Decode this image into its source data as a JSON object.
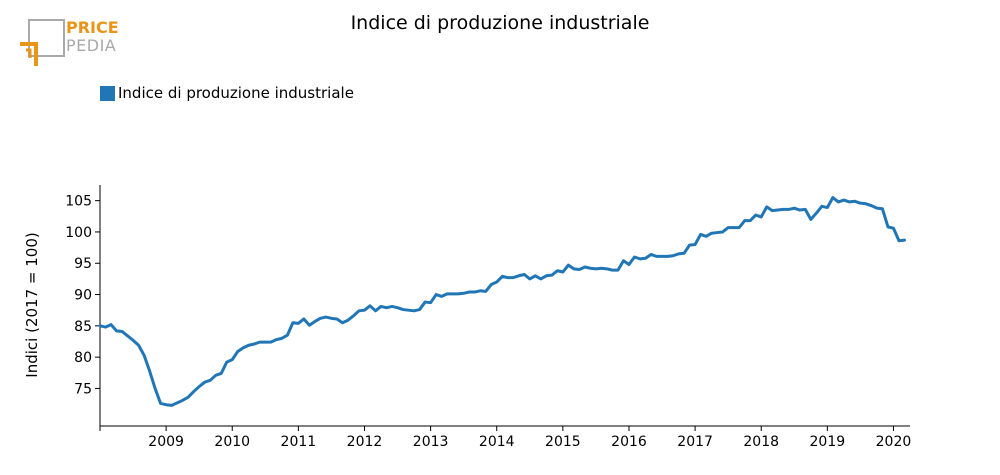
{
  "logo": {
    "top": "PRICE",
    "bottom": "PEDIA",
    "accent_color": "#e8951a",
    "gray_color": "#a9a9a9"
  },
  "colors": {
    "series": "#2176b5",
    "axis": "#000000"
  },
  "chart_data": {
    "type": "line",
    "title": "Indice di produzione industriale",
    "ylabel": "Indici (2017 = 100)",
    "xlabel": "",
    "legend_position": "top-left",
    "grid": false,
    "ylim": [
      69,
      107.5
    ],
    "yticks": [
      75,
      80,
      85,
      90,
      95,
      100,
      105
    ],
    "x_start": "2008-01",
    "xlim": [
      "2008-01",
      "2020-04"
    ],
    "xticks": [
      "2009",
      "2010",
      "2011",
      "2012",
      "2013",
      "2014",
      "2015",
      "2016",
      "2017",
      "2018",
      "2019",
      "2020"
    ],
    "series": [
      {
        "name": "Indice di produzione industriale",
        "color": "#2176b5",
        "values": [
          85.0,
          84.8,
          85.2,
          84.2,
          84.1,
          83.4,
          82.7,
          81.9,
          80.3,
          77.8,
          75.0,
          72.6,
          72.4,
          72.3,
          72.7,
          73.1,
          73.6,
          74.5,
          75.3,
          76.0,
          76.3,
          77.1,
          77.4,
          79.2,
          79.6,
          80.9,
          81.5,
          81.9,
          82.1,
          82.4,
          82.4,
          82.4,
          82.8,
          83.0,
          83.5,
          85.5,
          85.4,
          86.1,
          85.1,
          85.7,
          86.2,
          86.4,
          86.2,
          86.1,
          85.5,
          85.9,
          86.6,
          87.4,
          87.5,
          88.2,
          87.4,
          88.1,
          87.9,
          88.1,
          87.9,
          87.6,
          87.5,
          87.4,
          87.6,
          88.8,
          88.7,
          90.0,
          89.7,
          90.1,
          90.1,
          90.1,
          90.2,
          90.4,
          90.4,
          90.6,
          90.5,
          91.6,
          92.0,
          92.9,
          92.7,
          92.7,
          93.0,
          93.2,
          92.5,
          93.0,
          92.5,
          93.0,
          93.1,
          93.8,
          93.6,
          94.7,
          94.1,
          94.0,
          94.4,
          94.2,
          94.1,
          94.2,
          94.1,
          93.9,
          93.9,
          95.4,
          94.8,
          96.0,
          95.7,
          95.8,
          96.4,
          96.1,
          96.1,
          96.1,
          96.2,
          96.5,
          96.6,
          97.9,
          98.0,
          99.6,
          99.3,
          99.8,
          99.9,
          100.0,
          100.7,
          100.7,
          100.7,
          101.8,
          101.8,
          102.7,
          102.4,
          104.0,
          103.4,
          103.5,
          103.6,
          103.6,
          103.8,
          103.5,
          103.6,
          102.0,
          103.0,
          104.1,
          103.9,
          105.5,
          104.8,
          105.1,
          104.8,
          104.9,
          104.6,
          104.5,
          104.2,
          103.8,
          103.7,
          100.8,
          100.6,
          98.6,
          98.7
        ]
      }
    ]
  }
}
